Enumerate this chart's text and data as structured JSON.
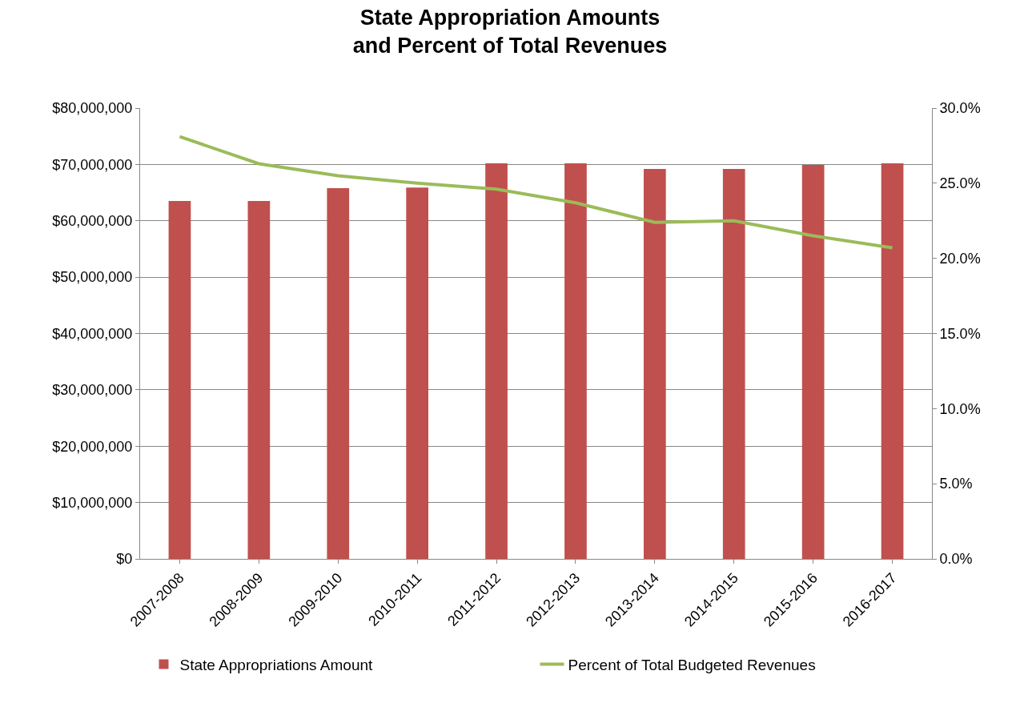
{
  "chart_data": {
    "type": "bar",
    "title": "State Appropriation Amounts\nand Percent of Total Revenues",
    "categories": [
      "2007-2008",
      "2008-2009",
      "2009-2010",
      "2010-2011",
      "2011-2012",
      "2012-2013",
      "2013-2014",
      "2014-2015",
      "2015-2016",
      "2016-2017"
    ],
    "series": [
      {
        "name": "State Appropriations Amount",
        "color": "#c0504d",
        "values": [
          63500000,
          63500000,
          65800000,
          65900000,
          70200000,
          70200000,
          69200000,
          69200000,
          69900000,
          70200000
        ]
      },
      {
        "name": "Percent of Total Budgeted Revenues",
        "type": "line",
        "axis": "y2",
        "color": "#9bbb59",
        "values": [
          28.1,
          26.3,
          25.5,
          25.0,
          24.6,
          23.7,
          22.4,
          22.5,
          21.5,
          20.7
        ]
      }
    ],
    "ylim": [
      0,
      80000000
    ],
    "yticks": [
      {
        "value": 0,
        "label": "$0"
      },
      {
        "value": 10000000,
        "label": "$10,000,000"
      },
      {
        "value": 20000000,
        "label": "$20,000,000"
      },
      {
        "value": 30000000,
        "label": "$30,000,000"
      },
      {
        "value": 40000000,
        "label": "$40,000,000"
      },
      {
        "value": 50000000,
        "label": "$50,000,000"
      },
      {
        "value": 60000000,
        "label": "$60,000,000"
      },
      {
        "value": 70000000,
        "label": "$70,000,000"
      },
      {
        "value": 80000000,
        "label": "$80,000,000"
      }
    ],
    "y2lim": [
      0,
      30
    ],
    "y2ticks": [
      {
        "value": 0,
        "label": "0.0%"
      },
      {
        "value": 5,
        "label": "5.0%"
      },
      {
        "value": 10,
        "label": "10.0%"
      },
      {
        "value": 15,
        "label": "15.0%"
      },
      {
        "value": 20,
        "label": "20.0%"
      },
      {
        "value": 25,
        "label": "25.0%"
      },
      {
        "value": 30,
        "label": "30.0%"
      }
    ],
    "grid": "y",
    "legend": "bottom",
    "marker": "none",
    "line_style": "solid"
  }
}
